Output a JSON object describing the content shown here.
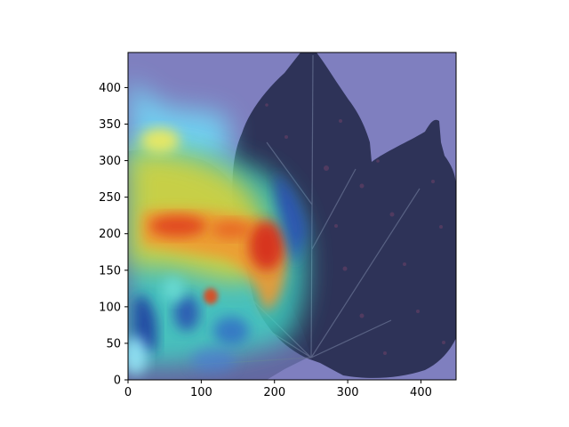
{
  "image": {
    "subject": "leaf-gradcam-heatmap-overlay",
    "colormap": "jet",
    "background_color": "#7f7fbf",
    "leaf_color": "#2e3358"
  },
  "axes": {
    "x_range": [
      0,
      448
    ],
    "y_range": [
      448,
      0
    ],
    "x_ticks": [
      "0",
      "100",
      "200",
      "300",
      "400"
    ],
    "y_ticks": [
      "0",
      "50",
      "100",
      "150",
      "200",
      "250",
      "300",
      "350",
      "400"
    ]
  }
}
